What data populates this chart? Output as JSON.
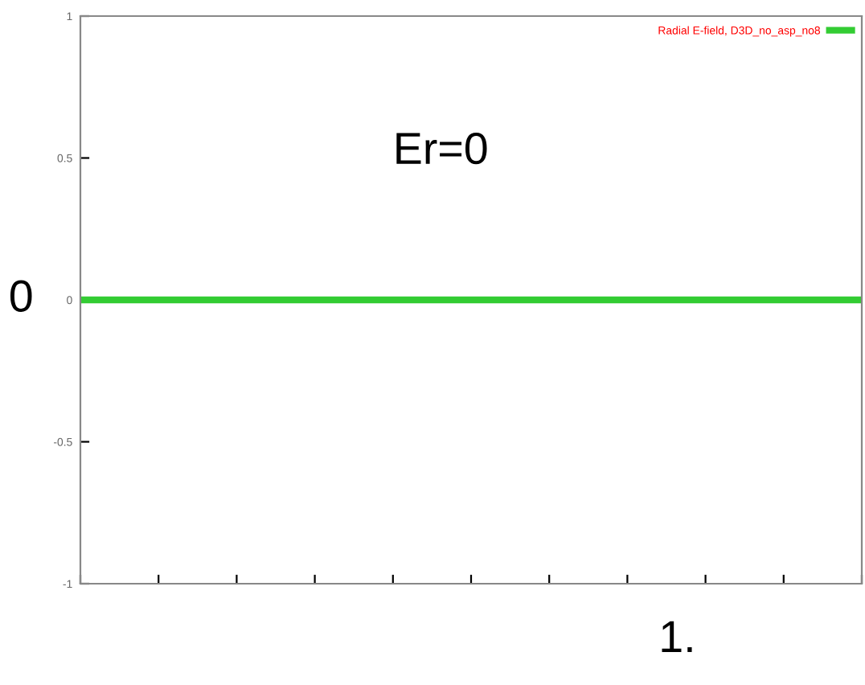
{
  "chart_data": {
    "type": "line",
    "categories": [
      null,
      null,
      null,
      null,
      null,
      null,
      null,
      null,
      null,
      null,
      null
    ],
    "series": [
      {
        "name": "Radial E-field, D3D_no_asp_no8",
        "color": "#33cc33",
        "values": [
          0,
          0,
          0,
          0,
          0,
          0,
          0,
          0,
          0,
          0,
          0
        ]
      }
    ],
    "ylim": [
      -1,
      1
    ],
    "yticks": [
      -1,
      -0.5,
      0,
      0.5,
      1
    ],
    "legend": "top right",
    "grid": false,
    "marker": "none",
    "line_style": "solid",
    "annotations": [
      "Er=0",
      "0",
      "1."
    ]
  }
}
